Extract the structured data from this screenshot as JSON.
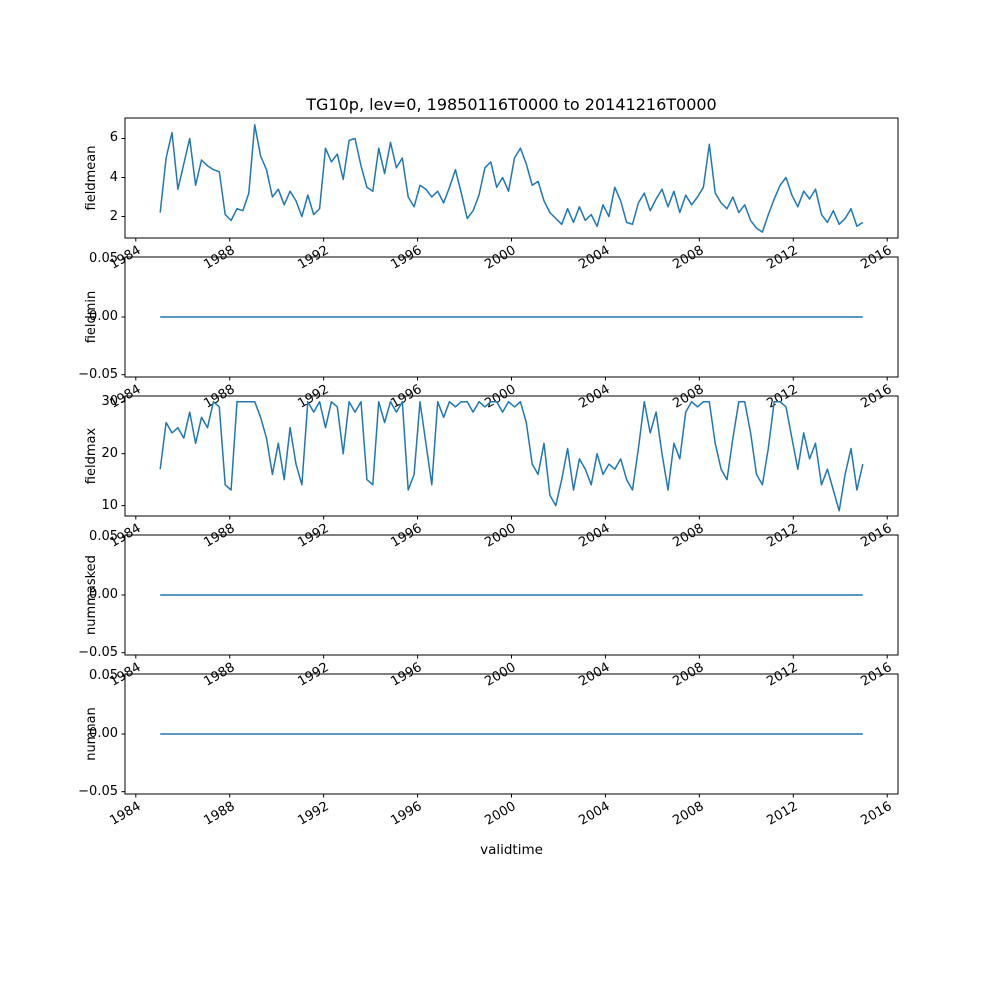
{
  "figure": {
    "title": "TG10p, lev=0, 19850116T0000 to 20141216T0000",
    "xlabel": "validtime"
  },
  "x_axis": {
    "ticks": [
      1984,
      1988,
      1992,
      1996,
      2000,
      2004,
      2008,
      2012,
      2016
    ],
    "xlim": [
      1983.54,
      2016.46
    ]
  },
  "chart_data": [
    {
      "type": "line",
      "name": "fieldmean",
      "ylabel": "fieldmean",
      "color": "#1f77b4",
      "grid": false,
      "legend": "none",
      "x_start": 1985.04,
      "x_end": 2014.96,
      "xlim": [
        1983.54,
        2016.46
      ],
      "ylim": [
        0.9,
        7.05
      ],
      "yticks": [
        2,
        4,
        6
      ],
      "ytick_labels": [
        "2",
        "4",
        "6"
      ],
      "values": [
        2.2,
        5.0,
        6.3,
        3.4,
        4.7,
        6.0,
        3.6,
        4.9,
        4.6,
        4.4,
        4.3,
        2.1,
        1.8,
        2.4,
        2.3,
        3.2,
        6.7,
        5.1,
        4.4,
        3.0,
        3.4,
        2.6,
        3.3,
        2.8,
        2.0,
        3.1,
        2.1,
        2.4,
        5.5,
        4.8,
        5.2,
        3.9,
        5.9,
        6.0,
        4.6,
        3.5,
        3.3,
        5.5,
        4.2,
        5.8,
        4.5,
        5.0,
        3.0,
        2.5,
        3.6,
        3.4,
        3.0,
        3.3,
        2.7,
        3.5,
        4.4,
        3.2,
        1.9,
        2.3,
        3.1,
        4.5,
        4.8,
        3.5,
        4.0,
        3.3,
        5.0,
        5.5,
        4.7,
        3.6,
        3.8,
        2.8,
        2.2,
        1.9,
        1.6,
        2.4,
        1.7,
        2.5,
        1.8,
        2.1,
        1.5,
        2.6,
        2.0,
        3.5,
        2.8,
        1.7,
        1.6,
        2.7,
        3.2,
        2.3,
        2.9,
        3.4,
        2.5,
        3.3,
        2.2,
        3.1,
        2.6,
        3.0,
        3.5,
        5.7,
        3.2,
        2.7,
        2.4,
        3.0,
        2.2,
        2.6,
        1.8,
        1.4,
        1.2,
        2.1,
        2.9,
        3.6,
        4.0,
        3.1,
        2.5,
        3.3,
        2.9,
        3.4,
        2.1,
        1.7,
        2.3,
        1.6,
        1.9,
        2.4,
        1.5,
        1.7
      ]
    },
    {
      "type": "line",
      "name": "fieldmin",
      "ylabel": "fieldmin",
      "color": "#1f77b4",
      "grid": false,
      "legend": "none",
      "x_start": 1985.04,
      "x_end": 2014.96,
      "xlim": [
        1983.54,
        2016.46
      ],
      "ylim": [
        -0.052,
        0.052
      ],
      "yticks": [
        -0.05,
        0.0,
        0.05
      ],
      "ytick_labels": [
        "−0.05",
        "0.00",
        "0.05"
      ],
      "values": [
        0.0,
        0.0
      ]
    },
    {
      "type": "line",
      "name": "fieldmax",
      "ylabel": "fieldmax",
      "color": "#1f77b4",
      "grid": false,
      "legend": "none",
      "x_start": 1985.04,
      "x_end": 2014.96,
      "xlim": [
        1983.54,
        2016.46
      ],
      "ylim": [
        8.0,
        31.1
      ],
      "yticks": [
        10,
        20,
        30
      ],
      "ytick_labels": [
        "10",
        "20",
        "30"
      ],
      "values": [
        17,
        26,
        24,
        25,
        23,
        28,
        22,
        27,
        25,
        30,
        29,
        14,
        13,
        30,
        30,
        30,
        30,
        27,
        23,
        16,
        22,
        15,
        25,
        18,
        14,
        30,
        28,
        30,
        25,
        30,
        29,
        20,
        30,
        28,
        30,
        15,
        14,
        30,
        26,
        30,
        28,
        30,
        13,
        16,
        30,
        22,
        14,
        30,
        27,
        30,
        29,
        30,
        30,
        28,
        30,
        29,
        30,
        30,
        28,
        30,
        29,
        30,
        26,
        18,
        16,
        22,
        12,
        10,
        15,
        21,
        13,
        19,
        17,
        14,
        20,
        16,
        18,
        17,
        19,
        15,
        13,
        21,
        30,
        24,
        28,
        20,
        13,
        22,
        19,
        28,
        30,
        29,
        30,
        30,
        22,
        17,
        15,
        23,
        30,
        30,
        24,
        16,
        14,
        21,
        30,
        30,
        29,
        23,
        17,
        24,
        19,
        22,
        14,
        17,
        13,
        9,
        16,
        21,
        13,
        18
      ]
    },
    {
      "type": "line",
      "name": "nummasked",
      "ylabel": "nummasked",
      "color": "#1f77b4",
      "grid": false,
      "legend": "none",
      "x_start": 1985.04,
      "x_end": 2014.96,
      "xlim": [
        1983.54,
        2016.46
      ],
      "ylim": [
        -0.052,
        0.052
      ],
      "yticks": [
        -0.05,
        0.0,
        0.05
      ],
      "ytick_labels": [
        "−0.05",
        "0.00",
        "0.05"
      ],
      "values": [
        0.0,
        0.0
      ]
    },
    {
      "type": "line",
      "name": "numnan",
      "ylabel": "numnan",
      "color": "#1f77b4",
      "grid": false,
      "legend": "none",
      "x_start": 1985.04,
      "x_end": 2014.96,
      "xlim": [
        1983.54,
        2016.46
      ],
      "ylim": [
        -0.052,
        0.052
      ],
      "yticks": [
        -0.05,
        0.0,
        0.05
      ],
      "ytick_labels": [
        "−0.05",
        "0.00",
        "0.05"
      ],
      "values": [
        0.0,
        0.0
      ]
    }
  ]
}
